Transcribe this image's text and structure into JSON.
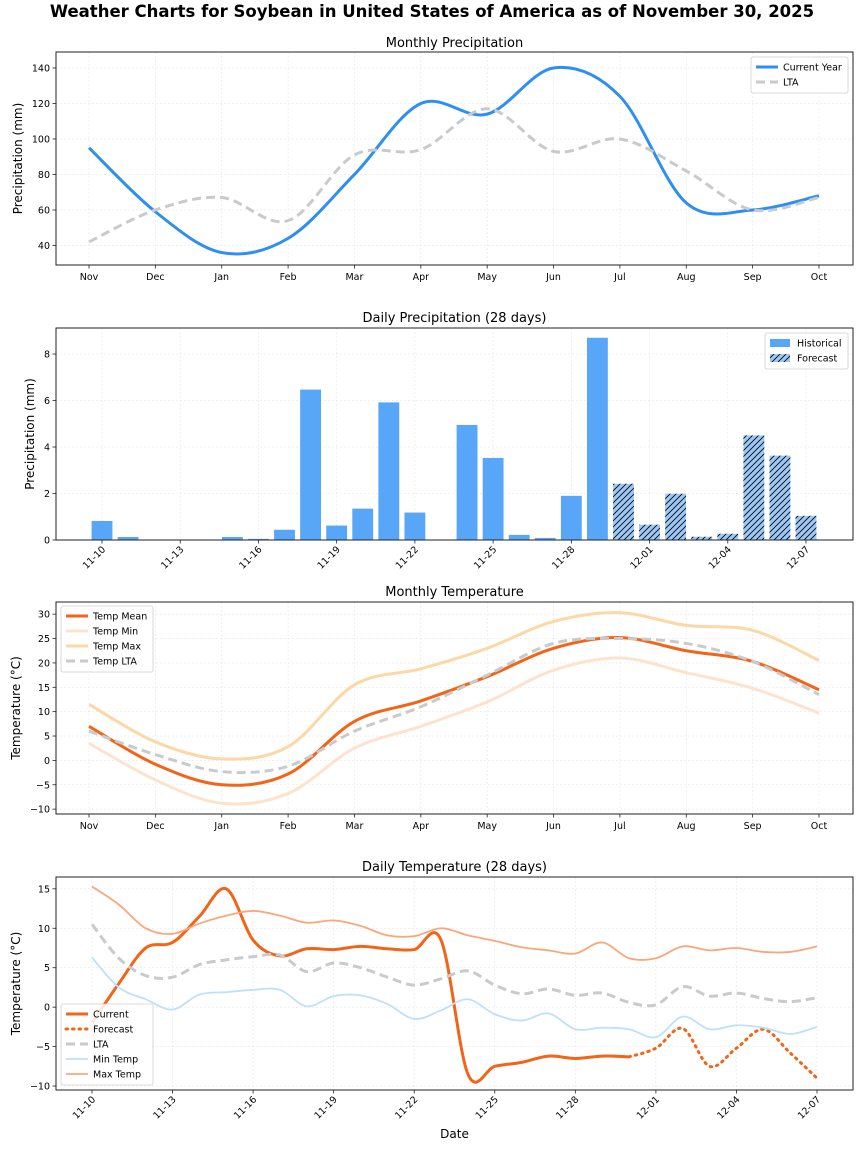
{
  "page": {
    "title": "Weather Charts for Soybean in United States of America as of November 30, 2025"
  },
  "colors": {
    "current": "#2e8ff0",
    "lta": "#c8cacc",
    "historical_bar": "#58a6f8",
    "forecast_bar": "#9dc8f6",
    "temp_mean": "#f26418",
    "temp_min": "#fde3cc",
    "temp_max": "#fbd8a6",
    "daily_min": "#bde0fb",
    "daily_max": "#f9a77a"
  },
  "chart_data": [
    {
      "id": "monthly-precipitation",
      "type": "line",
      "title": "Monthly Precipitation",
      "xlabel": "",
      "ylabel": "Precipitation (mm)",
      "categories": [
        "Nov",
        "Dec",
        "Jan",
        "Feb",
        "Mar",
        "Apr",
        "May",
        "Jun",
        "Jul",
        "Aug",
        "Sep",
        "Oct"
      ],
      "ylim": [
        29,
        149
      ],
      "yticks": [
        40,
        60,
        80,
        100,
        120,
        140
      ],
      "grid": true,
      "legend_position": "top-right",
      "series": [
        {
          "name": "Current Year",
          "style": "solid",
          "values": [
            95,
            59,
            36,
            44,
            80,
            120,
            114,
            140,
            124,
            64,
            60,
            68
          ]
        },
        {
          "name": "LTA",
          "style": "dashed",
          "values": [
            42,
            60,
            67,
            54,
            91,
            94,
            117,
            93,
            100,
            82,
            60,
            67
          ]
        }
      ]
    },
    {
      "id": "daily-precipitation",
      "type": "bar",
      "title": "Daily Precipitation (28 days)",
      "xlabel": "",
      "ylabel": "Precipitation (mm)",
      "categories": [
        "11-10",
        "11-11",
        "11-12",
        "11-13",
        "11-14",
        "11-15",
        "11-16",
        "11-17",
        "11-18",
        "11-19",
        "11-20",
        "11-21",
        "11-22",
        "11-23",
        "11-24",
        "11-25",
        "11-26",
        "11-27",
        "11-28",
        "11-29",
        "11-30",
        "12-01",
        "12-02",
        "12-03",
        "12-04",
        "12-05",
        "12-06",
        "12-07"
      ],
      "xtick_labels": [
        "11-10",
        "11-13",
        "11-16",
        "11-19",
        "11-22",
        "11-25",
        "11-28",
        "12-01",
        "12-04",
        "12-07"
      ],
      "ylim": [
        0,
        9.12
      ],
      "yticks": [
        0,
        2,
        4,
        6,
        8
      ],
      "grid": true,
      "legend_position": "top-right",
      "series": [
        {
          "name": "Historical",
          "values": [
            0.82,
            0.13,
            0,
            0,
            0,
            0.13,
            0.05,
            0.44,
            6.47,
            0.62,
            1.35,
            5.92,
            1.18,
            0,
            4.95,
            3.53,
            0.22,
            0.09,
            1.9,
            8.7,
            null,
            null,
            null,
            null,
            null,
            null,
            null,
            null
          ]
        },
        {
          "name": "Forecast",
          "values": [
            null,
            null,
            null,
            null,
            null,
            null,
            null,
            null,
            null,
            null,
            null,
            null,
            null,
            null,
            null,
            null,
            null,
            null,
            null,
            null,
            2.42,
            0.66,
            1.99,
            0.14,
            0.27,
            4.5,
            3.63,
            1.04
          ]
        }
      ]
    },
    {
      "id": "monthly-temperature",
      "type": "line",
      "title": "Monthly Temperature",
      "xlabel": "",
      "ylabel": "Temperature (°C)",
      "categories": [
        "Nov",
        "Dec",
        "Jan",
        "Feb",
        "Mar",
        "Apr",
        "May",
        "Jun",
        "Jul",
        "Aug",
        "Sep",
        "Oct"
      ],
      "ylim": [
        -11,
        32.5
      ],
      "yticks": [
        -10,
        -5,
        0,
        5,
        10,
        15,
        20,
        25,
        30
      ],
      "grid": true,
      "legend_position": "top-left",
      "series": [
        {
          "name": "Temp Mean",
          "style": "solid",
          "values": [
            7,
            -0.8,
            -5,
            -2.8,
            8,
            12.2,
            17.2,
            23,
            25.2,
            22.5,
            20.3,
            14.5
          ]
        },
        {
          "name": "Temp Min",
          "style": "solid",
          "values": [
            3.5,
            -4,
            -8.8,
            -6.8,
            2.5,
            7,
            12,
            18.5,
            21,
            18,
            14.8,
            9.7
          ]
        },
        {
          "name": "Temp Max",
          "style": "solid",
          "values": [
            11.5,
            3.8,
            0.3,
            2.8,
            15.5,
            18.8,
            23,
            28.5,
            30.3,
            27.7,
            26.7,
            20.5
          ]
        },
        {
          "name": "Temp LTA",
          "style": "dashed",
          "values": [
            6,
            1.2,
            -2.3,
            -1.2,
            6,
            11,
            17.5,
            24,
            25,
            24,
            20.3,
            13.5
          ]
        }
      ]
    },
    {
      "id": "daily-temperature",
      "type": "line",
      "title": "Daily Temperature (28 days)",
      "xlabel": "Date",
      "ylabel": "Temperature (°C)",
      "categories": [
        "11-10",
        "11-11",
        "11-12",
        "11-13",
        "11-14",
        "11-15",
        "11-16",
        "11-17",
        "11-18",
        "11-19",
        "11-20",
        "11-21",
        "11-22",
        "11-23",
        "11-24",
        "11-25",
        "11-26",
        "11-27",
        "11-28",
        "11-29",
        "11-30",
        "12-01",
        "12-02",
        "12-03",
        "12-04",
        "12-05",
        "12-06",
        "12-07"
      ],
      "xtick_labels": [
        "11-10",
        "11-13",
        "11-16",
        "11-19",
        "11-22",
        "11-25",
        "11-28",
        "12-01",
        "12-04",
        "12-07"
      ],
      "ylim": [
        -10.5,
        16.5
      ],
      "yticks": [
        -10,
        -5,
        0,
        5,
        10,
        15
      ],
      "grid": true,
      "legend_position": "bottom-left",
      "series": [
        {
          "name": "Current",
          "style": "solid",
          "values": [
            -2,
            3,
            7.5,
            8.2,
            11.5,
            15,
            8.5,
            6.5,
            7.4,
            7.3,
            7.7,
            7.4,
            7.3,
            8.5,
            -8.5,
            -7.5,
            -7.0,
            -6.2,
            -6.5,
            -6.2,
            -6.3,
            null,
            null,
            null,
            null,
            null,
            null,
            null
          ]
        },
        {
          "name": "Forecast",
          "style": "dotted",
          "values": [
            null,
            null,
            null,
            null,
            null,
            null,
            null,
            null,
            null,
            null,
            null,
            null,
            null,
            null,
            null,
            null,
            null,
            null,
            null,
            null,
            -6.3,
            -5.2,
            -2.7,
            -7.5,
            -5.2,
            -2.8,
            -5.8,
            -9
          ]
        },
        {
          "name": "LTA",
          "style": "dashed",
          "values": [
            10.5,
            6.2,
            4.0,
            3.8,
            5.4,
            6.0,
            6.4,
            6.6,
            4.5,
            5.6,
            5.0,
            3.8,
            2.8,
            3.6,
            4.6,
            2.8,
            1.7,
            2.3,
            1.5,
            1.8,
            0.6,
            0.3,
            2.6,
            1.4,
            1.8,
            1.1,
            0.7,
            1.2
          ]
        },
        {
          "name": "Min Temp",
          "style": "solid",
          "values": [
            6.3,
            2.5,
            1.0,
            -0.3,
            1.6,
            1.9,
            2.2,
            2.2,
            0.1,
            1.4,
            1.5,
            0.4,
            -1.5,
            -0.4,
            1.0,
            -0.9,
            -1.7,
            -0.8,
            -2.8,
            -2.6,
            -2.8,
            -3.8,
            -1.2,
            -2.8,
            -2.3,
            -2.6,
            -3.4,
            -2.5
          ]
        },
        {
          "name": "Max Temp",
          "style": "solid",
          "values": [
            15.3,
            13.0,
            10.0,
            9.3,
            10.6,
            11.6,
            12.2,
            11.6,
            10.7,
            11.0,
            10.3,
            9.1,
            9.0,
            10.0,
            9.1,
            8.4,
            7.6,
            7.2,
            6.8,
            8.2,
            6.2,
            6.2,
            7.7,
            7.2,
            7.5,
            7.0,
            7.0,
            7.7
          ]
        }
      ]
    }
  ]
}
